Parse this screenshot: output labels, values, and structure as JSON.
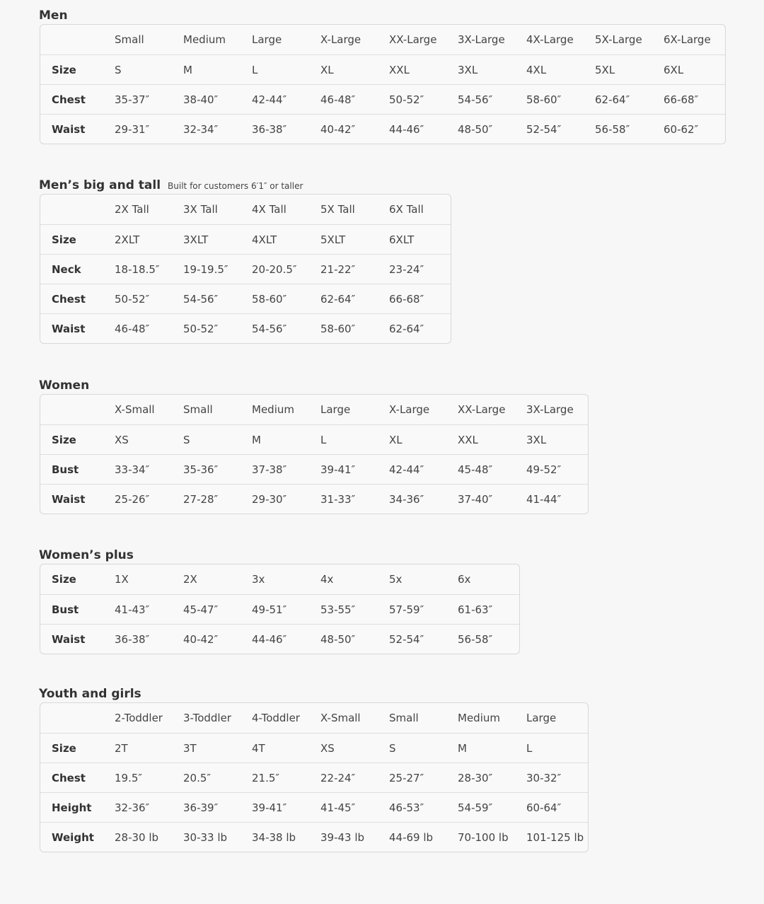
{
  "sections": [
    {
      "title": "Men",
      "subtitle": "",
      "header": [
        "Small",
        "Medium",
        "Large",
        "X-Large",
        "XX-Large",
        "3X-Large",
        "4X-Large",
        "5X-Large",
        "6X-Large"
      ],
      "rows": [
        {
          "label": "Size",
          "values": [
            "S",
            "M",
            "L",
            "XL",
            "XXL",
            "3XL",
            "4XL",
            "5XL",
            "6XL"
          ]
        },
        {
          "label": "Chest",
          "values": [
            "35-37″",
            "38-40″",
            "42-44″",
            "46-48″",
            "50-52″",
            "54-56″",
            "58-60″",
            "62-64″",
            "66-68″"
          ]
        },
        {
          "label": "Waist",
          "values": [
            "29-31″",
            "32-34″",
            "36-38″",
            "40-42″",
            "44-46″",
            "48-50″",
            "52-54″",
            "56-58″",
            "60-62″"
          ]
        }
      ]
    },
    {
      "title": "Men’s big and tall",
      "subtitle": "Built for customers 6′1″ or taller",
      "header": [
        "2X Tall",
        "3X Tall",
        "4X Tall",
        "5X Tall",
        "6X Tall"
      ],
      "rows": [
        {
          "label": "Size",
          "values": [
            "2XLT",
            "3XLT",
            "4XLT",
            "5XLT",
            "6XLT"
          ]
        },
        {
          "label": "Neck",
          "values": [
            "18-18.5″",
            "19-19.5″",
            "20-20.5″",
            "21-22″",
            "23-24″"
          ]
        },
        {
          "label": "Chest",
          "values": [
            "50-52″",
            "54-56″",
            "58-60″",
            "62-64″",
            "66-68″"
          ]
        },
        {
          "label": "Waist",
          "values": [
            "46-48″",
            "50-52″",
            "54-56″",
            "58-60″",
            "62-64″"
          ]
        }
      ]
    },
    {
      "title": "Women",
      "subtitle": "",
      "header": [
        "X-Small",
        "Small",
        "Medium",
        "Large",
        "X-Large",
        "XX-Large",
        "3X-Large"
      ],
      "rows": [
        {
          "label": "Size",
          "values": [
            "XS",
            "S",
            "M",
            "L",
            "XL",
            "XXL",
            "3XL"
          ]
        },
        {
          "label": "Bust",
          "values": [
            "33-34″",
            "35-36″",
            "37-38″",
            "39-41″",
            "42-44″",
            "45-48″",
            "49-52″"
          ]
        },
        {
          "label": "Waist",
          "values": [
            "25-26″",
            "27-28″",
            "29-30″",
            "31-33″",
            "34-36″",
            "37-40″",
            "41-44″"
          ]
        }
      ]
    },
    {
      "title": "Women’s plus",
      "subtitle": "",
      "header": null,
      "rows": [
        {
          "label": "Size",
          "values": [
            "1X",
            "2X",
            "3x",
            "4x",
            "5x",
            "6x"
          ]
        },
        {
          "label": "Bust",
          "values": [
            "41-43″",
            "45-47″",
            "49-51″",
            "53-55″",
            "57-59″",
            "61-63″"
          ]
        },
        {
          "label": "Waist",
          "values": [
            "36-38″",
            "40-42″",
            "44-46″",
            "48-50″",
            "52-54″",
            "56-58″"
          ]
        }
      ]
    },
    {
      "title": "Youth and girls",
      "subtitle": "",
      "header": [
        "2-Toddler",
        "3-Toddler",
        "4-Toddler",
        "X-Small",
        "Small",
        "Medium",
        "Large"
      ],
      "rows": [
        {
          "label": "Size",
          "values": [
            "2T",
            "3T",
            "4T",
            "XS",
            "S",
            "M",
            "L"
          ]
        },
        {
          "label": "Chest",
          "values": [
            "19.5″",
            "20.5″",
            "21.5″",
            "22-24″",
            "25-27″",
            "28-30″",
            "30-32″"
          ]
        },
        {
          "label": "Height",
          "values": [
            "32-36″",
            "36-39″",
            "39-41″",
            "41-45″",
            "46-53″",
            "54-59″",
            "60-64″"
          ]
        },
        {
          "label": "Weight",
          "values": [
            "28-30 lb",
            "30-33 lb",
            "34-38 lb",
            "39-43 lb",
            "44-69 lb",
            "70-100 lb",
            "101-125 lb"
          ]
        }
      ]
    }
  ]
}
